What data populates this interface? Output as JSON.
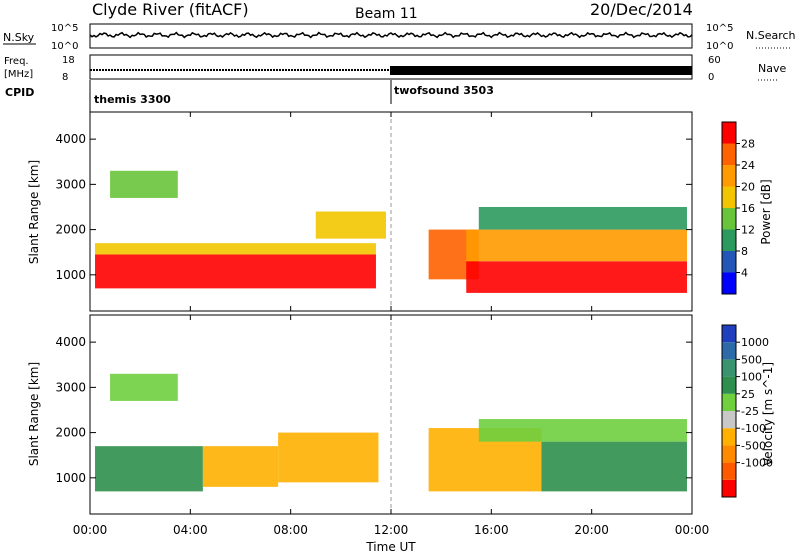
{
  "header": {
    "station": "Clyde River (fitACF)",
    "beam": "Beam 11",
    "date": "20/Dec/2014"
  },
  "chart_data": [
    {
      "type": "line",
      "panel": "noise",
      "left_label": "N.Sky",
      "right_label": "N.Search",
      "left_ticks": [
        "10^5",
        "10^0"
      ],
      "right_ticks": [
        "10^5",
        "10^0"
      ]
    },
    {
      "type": "line",
      "panel": "frequency-nave",
      "left_label_line1": "Freq.",
      "left_label_line2": "[MHz]",
      "right_label": "Nave",
      "left_ticks": [
        "18",
        "8"
      ],
      "right_ticks": [
        "60",
        "0"
      ],
      "freq_mhz": 10.5,
      "nave_segments": [
        {
          "x_start_h": 0,
          "x_end_h": 12,
          "nave": 10
        },
        {
          "x_start_h": 12,
          "x_end_h": 24,
          "nave": 16
        }
      ]
    },
    {
      "type": "table",
      "panel": "cpid",
      "label": "CPID",
      "segments": [
        {
          "start_h": 0,
          "name": "themis 3300"
        },
        {
          "start_h": 12,
          "name": "twofsound 3503"
        }
      ]
    },
    {
      "type": "heatmap",
      "panel": "power",
      "ylabel": "Slant Range [km]",
      "yticks": [
        "1000",
        "2000",
        "3000",
        "4000"
      ],
      "ylim": [
        200,
        4600
      ],
      "colorbar_title": "Power [dB]",
      "colorbar_ticks": [
        "4",
        "8",
        "12",
        "16",
        "20",
        "24",
        "28"
      ],
      "colorbar_colors": [
        "#0000ff",
        "#2456b8",
        "#2c9a5e",
        "#68c43a",
        "#f2c500",
        "#ff9a00",
        "#ff6200",
        "#ff0000"
      ],
      "bands": [
        {
          "x0": 0.2,
          "x1": 11.4,
          "y0": 700,
          "y1": 1450,
          "value": 28
        },
        {
          "x0": 0.2,
          "x1": 11.4,
          "y0": 1450,
          "y1": 1700,
          "value": 18
        },
        {
          "x0": 0.8,
          "x1": 3.5,
          "y0": 2700,
          "y1": 3300,
          "value": 14
        },
        {
          "x0": 9.0,
          "x1": 11.8,
          "y0": 1800,
          "y1": 2400,
          "value": 16
        },
        {
          "x0": 13.5,
          "x1": 15.5,
          "y0": 900,
          "y1": 2000,
          "value": 24
        },
        {
          "x0": 15.0,
          "x1": 23.8,
          "y0": 600,
          "y1": 1300,
          "value": 28
        },
        {
          "x0": 15.0,
          "x1": 23.8,
          "y0": 1300,
          "y1": 2000,
          "value": 20
        },
        {
          "x0": 15.5,
          "x1": 23.8,
          "y0": 2000,
          "y1": 2500,
          "value": 10
        }
      ]
    },
    {
      "type": "heatmap",
      "panel": "velocity",
      "ylabel": "Slant Range [km]",
      "yticks": [
        "1000",
        "2000",
        "3000",
        "4000"
      ],
      "ylim": [
        200,
        4600
      ],
      "colorbar_title": "Velocity [m s^-1]",
      "colorbar_ticks": [
        "1000",
        "500",
        "100",
        "25",
        "-25",
        "-100",
        "-500",
        "-1000"
      ],
      "colorbar_colors": [
        "#1f3fbf",
        "#2c6aa8",
        "#3a9470",
        "#2f8f4e",
        "#6fcf3f",
        "#c8c8c8",
        "#ffb000",
        "#ff8a00",
        "#ff5a00",
        "#ff0000"
      ],
      "bands": [
        {
          "x0": 0.2,
          "x1": 4.5,
          "y0": 700,
          "y1": 1700,
          "value": 100
        },
        {
          "x0": 4.5,
          "x1": 7.5,
          "y0": 800,
          "y1": 1700,
          "value": -100
        },
        {
          "x0": 7.5,
          "x1": 11.5,
          "y0": 900,
          "y1": 2000,
          "value": -100
        },
        {
          "x0": 13.5,
          "x1": 18.0,
          "y0": 700,
          "y1": 2100,
          "value": -100
        },
        {
          "x0": 18.0,
          "x1": 23.8,
          "y0": 700,
          "y1": 1800,
          "value": 100
        },
        {
          "x0": 0.8,
          "x1": 3.5,
          "y0": 2700,
          "y1": 3300,
          "value": 25
        },
        {
          "x0": 15.5,
          "x1": 23.8,
          "y0": 1800,
          "y1": 2300,
          "value": 25
        }
      ]
    }
  ],
  "xaxis": {
    "xlabel": "Time UT",
    "xlim": [
      0,
      24
    ],
    "ticks": [
      {
        "h": 0,
        "label": "00:00"
      },
      {
        "h": 4,
        "label": "04:00"
      },
      {
        "h": 8,
        "label": "08:00"
      },
      {
        "h": 12,
        "label": "12:00"
      },
      {
        "h": 16,
        "label": "16:00"
      },
      {
        "h": 20,
        "label": "20:00"
      },
      {
        "h": 24,
        "label": "00:00"
      }
    ]
  }
}
